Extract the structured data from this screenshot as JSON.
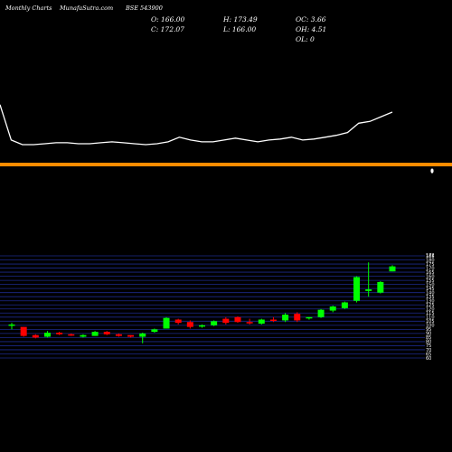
{
  "header": {
    "left": "Monthly Charts",
    "site": "MunafaSutra.com",
    "symbol": "BSE 543900"
  },
  "ohlc": {
    "o": "O: 166.00",
    "h": "H: 173.49",
    "oc": "OC: 3.66",
    "c": "C: 172.07",
    "l": "L: 166.00",
    "oh": "OH: 4.51",
    "ol": "OL: 0"
  },
  "colors": {
    "background": "#000000",
    "up": "#00ff00",
    "down": "#ff0000",
    "line": "#ffffff",
    "separator": "#ff8c00",
    "grid": "#1c2a8c"
  },
  "chart_data": [
    {
      "type": "line",
      "title": "",
      "series": [
        {
          "values": [
            100,
            62,
            57,
            57,
            58,
            59,
            59,
            58,
            58,
            59,
            60,
            59,
            58,
            57,
            58,
            60,
            65,
            62,
            60,
            60,
            62,
            64,
            62,
            60,
            62,
            63,
            65,
            62,
            63,
            65,
            67,
            70,
            80,
            82,
            87,
            92
          ]
        }
      ]
    },
    {
      "type": "candlestick",
      "title": "",
      "y_ticks": [
        60,
        65,
        70,
        75,
        80,
        85,
        90,
        95,
        100,
        105,
        110,
        115,
        120,
        125,
        130,
        135,
        140,
        145,
        150,
        155,
        160,
        165,
        170,
        175,
        180,
        185
      ],
      "last_price_label": "172",
      "candles": [
        {
          "o": 100,
          "h": 103,
          "l": 95,
          "c": 101
        },
        {
          "o": 98,
          "h": 98,
          "l": 86,
          "c": 87
        },
        {
          "o": 88,
          "h": 89,
          "l": 84,
          "c": 85
        },
        {
          "o": 86,
          "h": 93,
          "l": 85,
          "c": 91
        },
        {
          "o": 91,
          "h": 92,
          "l": 88,
          "c": 89
        },
        {
          "o": 89,
          "h": 90,
          "l": 87,
          "c": 88
        },
        {
          "o": 86,
          "h": 89,
          "l": 85,
          "c": 88
        },
        {
          "o": 87,
          "h": 93,
          "l": 87,
          "c": 92
        },
        {
          "o": 92,
          "h": 93,
          "l": 88,
          "c": 89
        },
        {
          "o": 89,
          "h": 90,
          "l": 86,
          "c": 87
        },
        {
          "o": 88,
          "h": 88,
          "l": 85,
          "c": 86
        },
        {
          "o": 86,
          "h": 91,
          "l": 78,
          "c": 90
        },
        {
          "o": 92,
          "h": 96,
          "l": 91,
          "c": 95
        },
        {
          "o": 96,
          "h": 110,
          "l": 96,
          "c": 109
        },
        {
          "o": 107,
          "h": 108,
          "l": 101,
          "c": 103
        },
        {
          "o": 104,
          "h": 106,
          "l": 96,
          "c": 98
        },
        {
          "o": 99,
          "h": 101,
          "l": 97,
          "c": 100
        },
        {
          "o": 100,
          "h": 106,
          "l": 99,
          "c": 105
        },
        {
          "o": 108,
          "h": 110,
          "l": 101,
          "c": 103
        },
        {
          "o": 110,
          "h": 111,
          "l": 103,
          "c": 104
        },
        {
          "o": 104,
          "h": 108,
          "l": 101,
          "c": 103
        },
        {
          "o": 102,
          "h": 108,
          "l": 101,
          "c": 107
        },
        {
          "o": 107,
          "h": 110,
          "l": 104,
          "c": 106
        },
        {
          "o": 106,
          "h": 115,
          "l": 104,
          "c": 113
        },
        {
          "o": 114,
          "h": 116,
          "l": 104,
          "c": 106
        },
        {
          "o": 109,
          "h": 110,
          "l": 107,
          "c": 110
        },
        {
          "o": 110,
          "h": 120,
          "l": 109,
          "c": 119
        },
        {
          "o": 118,
          "h": 124,
          "l": 116,
          "c": 123
        },
        {
          "o": 121,
          "h": 129,
          "l": 120,
          "c": 128
        },
        {
          "o": 130,
          "h": 160,
          "l": 128,
          "c": 159
        },
        {
          "o": 142,
          "h": 177,
          "l": 135,
          "c": 144
        },
        {
          "o": 140,
          "h": 154,
          "l": 139,
          "c": 153
        },
        {
          "o": 166,
          "h": 173.49,
          "l": 166,
          "c": 172.07
        }
      ]
    }
  ]
}
